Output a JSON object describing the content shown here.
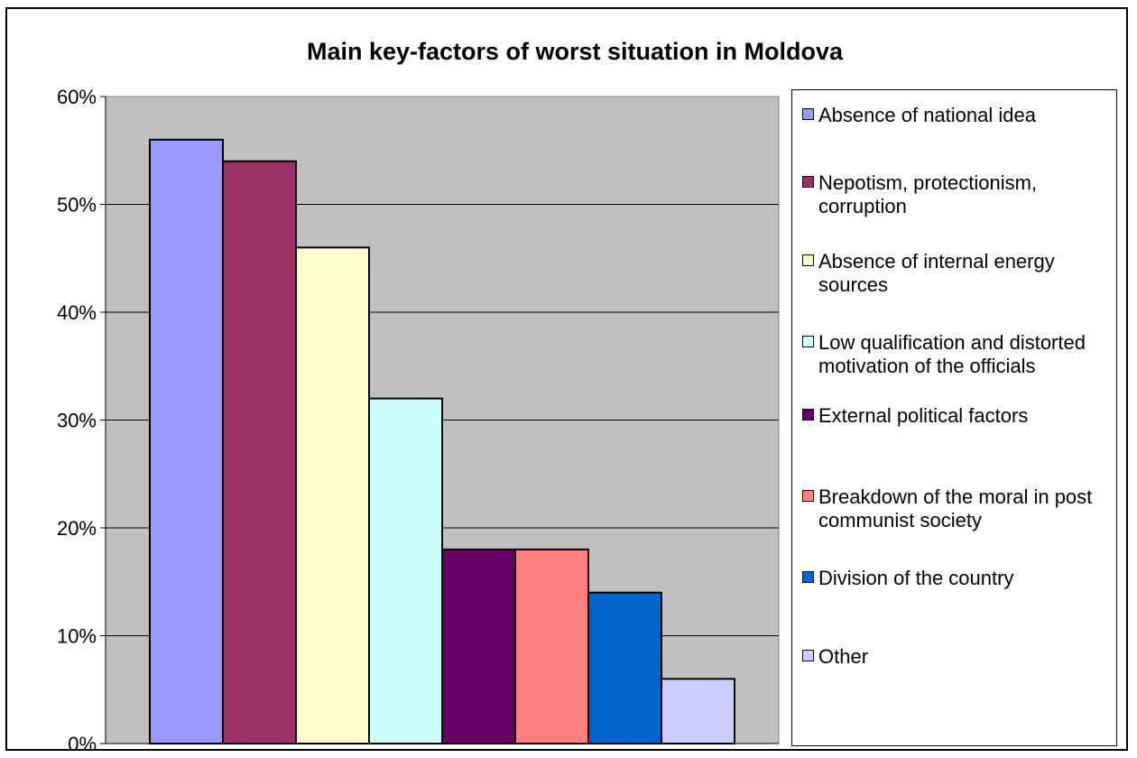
{
  "chart_data": {
    "type": "bar",
    "title": "Main key-factors of worst situation in Moldova",
    "xlabel": "",
    "ylabel": "",
    "ylim": [
      0,
      60
    ],
    "y_ticks": [
      "0%",
      "10%",
      "20%",
      "30%",
      "40%",
      "50%",
      "60%"
    ],
    "grid": true,
    "legend_position": "right",
    "plot_background": "#c0c0c0",
    "series": [
      {
        "name": "Absence of national idea",
        "value": 56,
        "color": "#9999ff"
      },
      {
        "name": "Nepotism, protectionism, corruption",
        "value": 54,
        "color": "#993366"
      },
      {
        "name": "Absence of internal energy sources",
        "value": 46,
        "color": "#ffffcc"
      },
      {
        "name": "Low qualification and distorted motivation of the officials",
        "value": 32,
        "color": "#ccffff"
      },
      {
        "name": "External political factors",
        "value": 18,
        "color": "#660066"
      },
      {
        "name": "Breakdown of the moral in post communist society",
        "value": 18,
        "color": "#ff8080"
      },
      {
        "name": "Division of the country",
        "value": 14,
        "color": "#0066cc"
      },
      {
        "name": "Other",
        "value": 6,
        "color": "#ccccff"
      }
    ]
  }
}
